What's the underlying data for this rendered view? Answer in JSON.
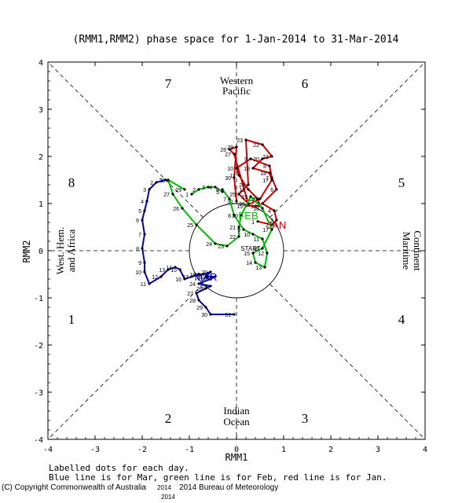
{
  "chart_data": {
    "type": "line",
    "title": "(RMM1,RMM2) phase space for  1-Jan-2014 to 31-Mar-2014",
    "xlabel": "RMM1",
    "ylabel": "RMM2",
    "xlim": [
      -4,
      4
    ],
    "ylim": [
      -4,
      4
    ],
    "xticks": [
      "-4",
      "-3",
      "-2",
      "-1",
      "0",
      "1",
      "2",
      "3",
      "4"
    ],
    "yticks": [
      "-4",
      "-3",
      "-2",
      "-1",
      "0",
      "1",
      "2",
      "3",
      "4"
    ],
    "phases": [
      {
        "label": "1",
        "x": -3.5,
        "y": -1.45
      },
      {
        "label": "2",
        "x": -1.45,
        "y": -3.55
      },
      {
        "label": "3",
        "x": 1.45,
        "y": -3.55
      },
      {
        "label": "4",
        "x": 3.5,
        "y": -1.45
      },
      {
        "label": "5",
        "x": 3.5,
        "y": 1.45
      },
      {
        "label": "6",
        "x": 1.45,
        "y": 3.55
      },
      {
        "label": "7",
        "x": -1.45,
        "y": 3.55
      },
      {
        "label": "8",
        "x": -3.5,
        "y": 1.45
      }
    ],
    "regions": {
      "top": [
        "Western",
        "Pacific"
      ],
      "bottom": [
        "Indian",
        "Ocean"
      ],
      "left": [
        "West. Hem.",
        "and Africa"
      ],
      "right": [
        "Maritime",
        "Continent"
      ]
    },
    "series": [
      {
        "name": "Jan",
        "color": "#cc0000",
        "month_label": "JAN",
        "month_label_at": [
          0.85,
          0.55
        ],
        "x": [
          0.45,
          0.75,
          0.85,
          0.8,
          0.55,
          0.85,
          0.75,
          0.7,
          0.3,
          0.0,
          0.05,
          0.25,
          0.45,
          0.5,
          0.2,
          0.5,
          0.75,
          0.7,
          0.35,
          0.55,
          0.75,
          0.55,
          0.2,
          0.25,
          0.05,
          0.25,
          -0.05,
          -0.15,
          0.0,
          -0.05,
          0.0
        ],
        "y": [
          0.62,
          0.55,
          0.65,
          0.85,
          1.0,
          1.3,
          1.55,
          1.8,
          1.95,
          1.75,
          1.6,
          1.3,
          1.1,
          0.95,
          0.95,
          1.1,
          1.5,
          1.65,
          1.75,
          1.95,
          2.0,
          2.25,
          2.35,
          1.4,
          1.2,
          1.0,
          2.05,
          2.15,
          2.2,
          1.55,
          1.05
        ],
        "day_labels": [
          "1",
          "2",
          "3",
          "4",
          "5",
          "6",
          "7",
          "8",
          "9",
          "10",
          "11",
          "12",
          "13",
          "14",
          "15",
          "16",
          "17",
          "18",
          "19",
          "20",
          "21",
          "22",
          "23",
          "24",
          "25",
          "26",
          "27",
          "28",
          "29",
          "30",
          "31"
        ]
      },
      {
        "name": "Feb",
        "color": "#00bb00",
        "month_label": "FEB",
        "month_label_at": [
          0.25,
          0.75
        ],
        "x": [
          -0.95,
          -0.8,
          -0.6,
          -0.45,
          -0.3,
          -0.3,
          -0.15,
          -0.05,
          0.15,
          0.35,
          0.55,
          0.65,
          0.6,
          0.4,
          0.35,
          0.55,
          0.75,
          0.55,
          0.3,
          0.1,
          0.05,
          0.05,
          -0.2,
          -0.45,
          -0.85,
          -1.15,
          -1.35,
          -1.45,
          -1.1
        ],
        "y": [
          1.2,
          1.3,
          1.35,
          1.35,
          1.25,
          1.3,
          1.1,
          0.75,
          0.45,
          0.35,
          0.25,
          -0.05,
          -0.35,
          -0.25,
          -0.05,
          0.05,
          0.45,
          0.9,
          1.15,
          0.75,
          0.5,
          0.3,
          0.1,
          0.15,
          0.55,
          0.9,
          1.2,
          1.5,
          1.3
        ],
        "day_labels": [
          "1",
          "2",
          "3",
          "4",
          "5",
          "6",
          "7",
          "8",
          "9",
          "10",
          "11",
          "12",
          "13",
          "14",
          "15",
          "16",
          "17",
          "18",
          "19",
          "20",
          "21",
          "22",
          "23",
          "24",
          "25",
          "26",
          "27",
          "28",
          "29"
        ]
      },
      {
        "name": "Mar",
        "color": "#0000bb",
        "month_label": "MAR",
        "month_label_at": [
          -0.65,
          -0.55
        ],
        "x": [
          -1.5,
          -1.7,
          -1.85,
          -1.9,
          -1.95,
          -2.0,
          -1.95,
          -2.0,
          -1.95,
          -1.95,
          -1.85,
          -1.6,
          -1.45,
          -1.3,
          -1.2,
          -1.1,
          -0.95,
          -0.8,
          -0.7,
          -0.55,
          -0.65,
          -0.45,
          -0.55,
          -0.8,
          -0.55,
          -0.65,
          -0.85,
          -0.8,
          -0.65,
          -0.55,
          -0.05
        ],
        "y": [
          1.5,
          1.45,
          1.3,
          1.05,
          0.85,
          0.65,
          0.35,
          0.05,
          -0.25,
          -0.45,
          -0.7,
          -0.55,
          -0.4,
          -0.35,
          -0.4,
          -0.6,
          -0.55,
          -0.5,
          -0.5,
          -0.45,
          -0.55,
          -0.55,
          -0.6,
          -0.7,
          -0.75,
          -0.8,
          -0.9,
          -1.05,
          -1.2,
          -1.35,
          -1.35
        ],
        "day_labels": [
          "1",
          "2",
          "3",
          "4",
          "5",
          "6",
          "7",
          "8",
          "9",
          "10",
          "11",
          "12",
          "13",
          "14",
          "15",
          "16",
          "17",
          "18",
          "19",
          "20",
          "21",
          "22",
          "23",
          "24",
          "25",
          "26",
          "27",
          "28",
          "29",
          "30",
          "31"
        ]
      }
    ],
    "start_label": "START",
    "start_label_at": [
      0.3,
      0.05
    ]
  },
  "notes": {
    "line1": "Labelled dots for each day.",
    "line2": "Blue line is for Mar, green line is for Feb, red line is for Jan."
  },
  "copyright": {
    "left": "(C) Copyright Commonwealth of Australia",
    "year": "2014",
    "right": "2014  Bureau of Meteorology",
    "year2": "2014"
  }
}
